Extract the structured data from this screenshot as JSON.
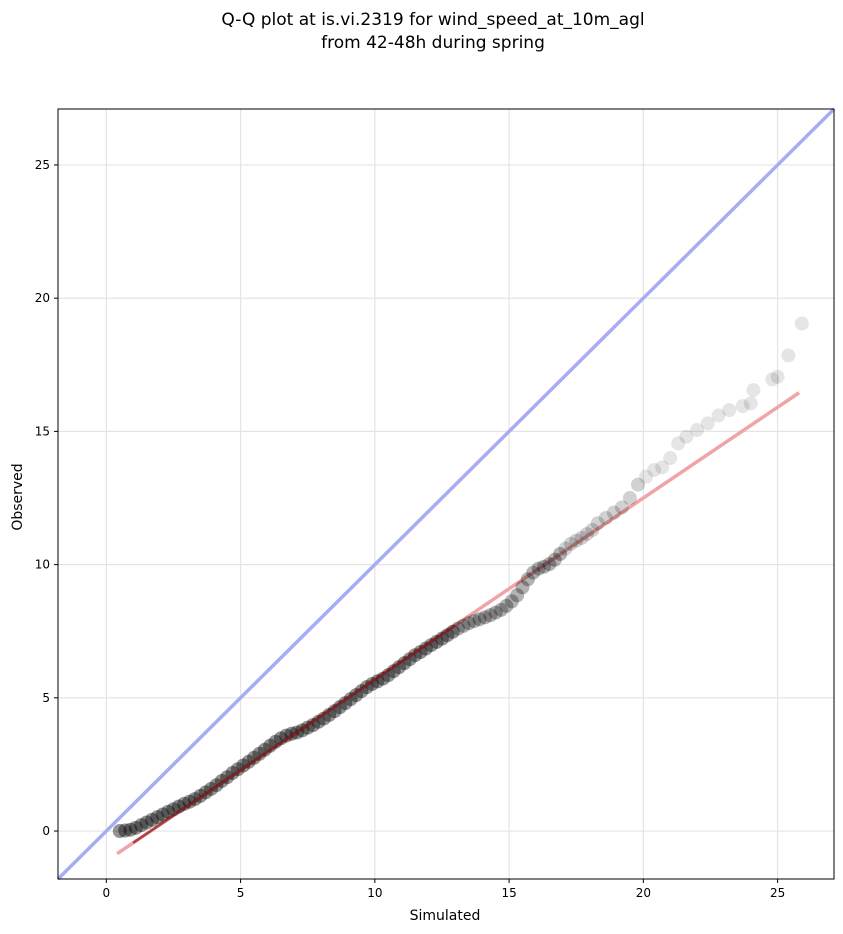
{
  "chart_data": {
    "type": "scatter",
    "title_lines": [
      "Q-Q plot at is.vi.2319 for wind_speed_at_10m_agl",
      "from 42-48h during spring"
    ],
    "xlabel": "Simulated",
    "ylabel": "Observed",
    "xlim": [
      -1.8,
      27.1
    ],
    "ylim": [
      -1.8,
      27.1
    ],
    "x_ticks": [
      0,
      5,
      10,
      15,
      20,
      25
    ],
    "y_ticks": [
      0,
      5,
      10,
      15,
      20,
      25
    ],
    "grid": true,
    "colors": {
      "points": "#000000",
      "identity_line": "#a8acf2",
      "fit_line": "#f0a4a6",
      "fit_line_dense": "#8b1a1a"
    },
    "points": [
      [
        0.5,
        0.0
      ],
      [
        0.7,
        0.02
      ],
      [
        0.9,
        0.05
      ],
      [
        1.1,
        0.12
      ],
      [
        1.3,
        0.22
      ],
      [
        1.5,
        0.32
      ],
      [
        1.7,
        0.42
      ],
      [
        1.9,
        0.52
      ],
      [
        2.1,
        0.62
      ],
      [
        2.3,
        0.72
      ],
      [
        2.5,
        0.82
      ],
      [
        2.7,
        0.92
      ],
      [
        2.9,
        1.02
      ],
      [
        3.1,
        1.1
      ],
      [
        3.3,
        1.2
      ],
      [
        3.5,
        1.32
      ],
      [
        3.7,
        1.45
      ],
      [
        3.9,
        1.58
      ],
      [
        4.1,
        1.72
      ],
      [
        4.3,
        1.88
      ],
      [
        4.5,
        2.02
      ],
      [
        4.7,
        2.18
      ],
      [
        4.9,
        2.32
      ],
      [
        5.1,
        2.46
      ],
      [
        5.3,
        2.6
      ],
      [
        5.5,
        2.75
      ],
      [
        5.7,
        2.9
      ],
      [
        5.9,
        3.05
      ],
      [
        6.1,
        3.2
      ],
      [
        6.3,
        3.35
      ],
      [
        6.5,
        3.48
      ],
      [
        6.7,
        3.58
      ],
      [
        6.9,
        3.65
      ],
      [
        7.1,
        3.7
      ],
      [
        7.3,
        3.78
      ],
      [
        7.5,
        3.88
      ],
      [
        7.7,
        3.98
      ],
      [
        7.9,
        4.1
      ],
      [
        8.1,
        4.22
      ],
      [
        8.3,
        4.36
      ],
      [
        8.5,
        4.5
      ],
      [
        8.7,
        4.65
      ],
      [
        8.9,
        4.8
      ],
      [
        9.1,
        4.95
      ],
      [
        9.3,
        5.1
      ],
      [
        9.5,
        5.25
      ],
      [
        9.7,
        5.4
      ],
      [
        9.9,
        5.52
      ],
      [
        10.1,
        5.62
      ],
      [
        10.3,
        5.72
      ],
      [
        10.5,
        5.85
      ],
      [
        10.7,
        6.0
      ],
      [
        10.9,
        6.15
      ],
      [
        11.1,
        6.3
      ],
      [
        11.3,
        6.45
      ],
      [
        11.5,
        6.6
      ],
      [
        11.7,
        6.72
      ],
      [
        11.9,
        6.85
      ],
      [
        12.1,
        6.98
      ],
      [
        12.3,
        7.1
      ],
      [
        12.5,
        7.22
      ],
      [
        12.7,
        7.35
      ],
      [
        12.9,
        7.48
      ],
      [
        13.1,
        7.6
      ],
      [
        13.3,
        7.7
      ],
      [
        13.5,
        7.8
      ],
      [
        13.7,
        7.88
      ],
      [
        13.9,
        7.95
      ],
      [
        14.1,
        8.02
      ],
      [
        14.3,
        8.1
      ],
      [
        14.5,
        8.2
      ],
      [
        14.7,
        8.3
      ],
      [
        14.9,
        8.45
      ],
      [
        15.1,
        8.62
      ],
      [
        15.3,
        8.85
      ],
      [
        15.5,
        9.15
      ],
      [
        15.7,
        9.45
      ],
      [
        15.9,
        9.7
      ],
      [
        16.1,
        9.85
      ],
      [
        16.3,
        9.92
      ],
      [
        16.5,
        10.02
      ],
      [
        16.7,
        10.18
      ],
      [
        16.9,
        10.4
      ],
      [
        17.1,
        10.6
      ],
      [
        17.3,
        10.78
      ],
      [
        17.5,
        10.9
      ],
      [
        17.7,
        11.0
      ],
      [
        17.9,
        11.15
      ],
      [
        18.1,
        11.3
      ],
      [
        18.3,
        11.55
      ],
      [
        18.6,
        11.75
      ],
      [
        18.9,
        11.95
      ],
      [
        19.2,
        12.15
      ],
      [
        19.5,
        12.5
      ],
      [
        19.8,
        13.0
      ],
      [
        20.1,
        13.3
      ],
      [
        20.4,
        13.55
      ],
      [
        20.7,
        13.65
      ],
      [
        21.0,
        14.0
      ],
      [
        21.3,
        14.55
      ],
      [
        21.6,
        14.8
      ],
      [
        22.0,
        15.05
      ],
      [
        22.4,
        15.3
      ],
      [
        22.8,
        15.6
      ],
      [
        23.2,
        15.8
      ],
      [
        23.7,
        15.95
      ],
      [
        24.0,
        16.05
      ],
      [
        24.1,
        16.55
      ],
      [
        24.8,
        16.95
      ],
      [
        25.0,
        17.05
      ],
      [
        25.4,
        17.85
      ],
      [
        25.9,
        19.05
      ]
    ],
    "fit_line": {
      "x": [
        0.4,
        25.8
      ],
      "y": [
        -0.85,
        16.45
      ]
    },
    "identity_line": {
      "x": [
        -1.8,
        27.1
      ],
      "y": [
        -1.8,
        27.1
      ]
    }
  }
}
